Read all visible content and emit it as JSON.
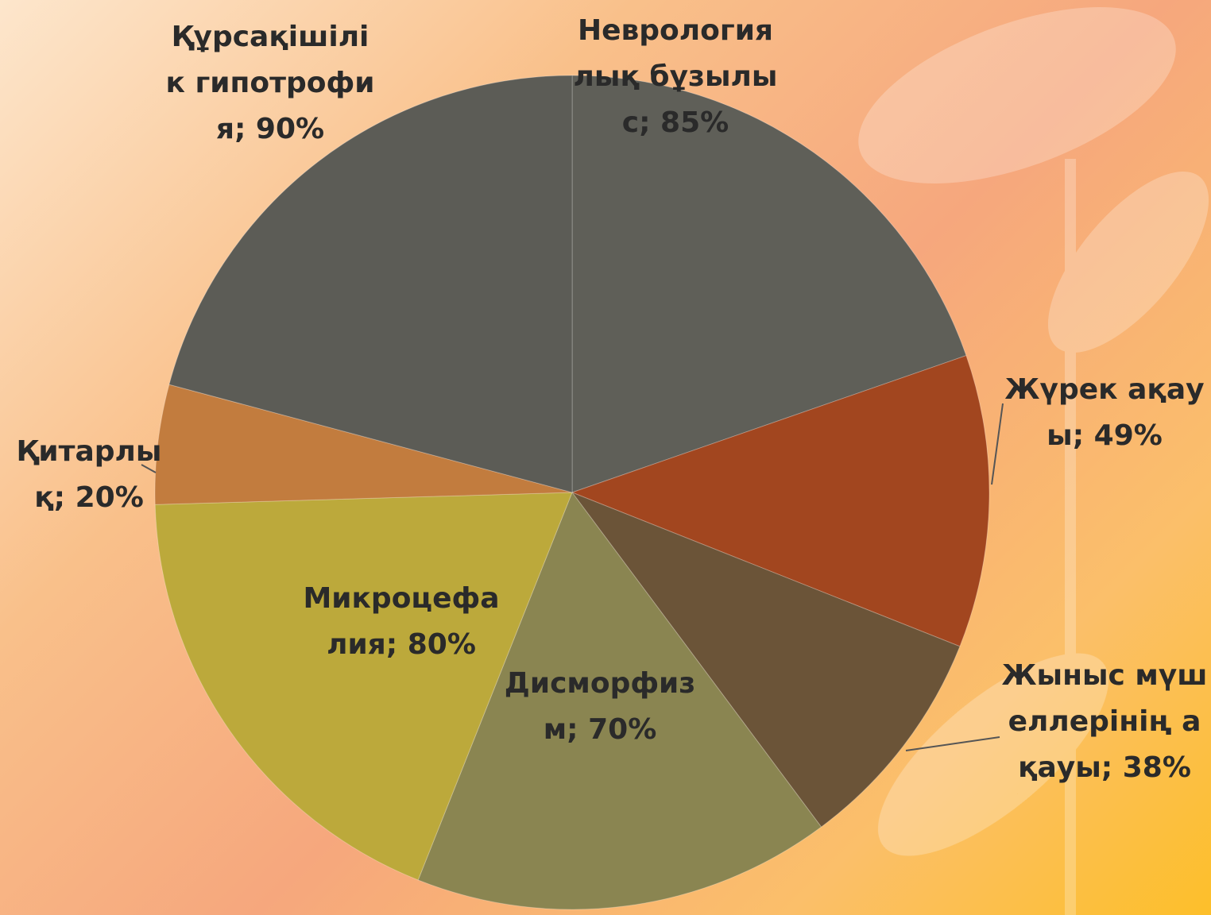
{
  "chart_data": {
    "type": "pie",
    "values": [
      85,
      49,
      38,
      70,
      80,
      20,
      90
    ],
    "value_labels": [
      "Неврологиялық бұзылыс; 85%",
      "Жүрек ақауы; 49%",
      "Жыныс мүшеллерінің ақауы; 38%",
      "Дисморфизм; 70%",
      "Микроцефалия; 80%",
      "Қитарлық; 20%",
      "Құрсақішілік гипотрофия; 90%"
    ],
    "colors": [
      "#5f5f58",
      "#a2461f",
      "#6b5438",
      "#8a8551",
      "#bca93b",
      "#c27c3e",
      "#5c5c56"
    ]
  }
}
